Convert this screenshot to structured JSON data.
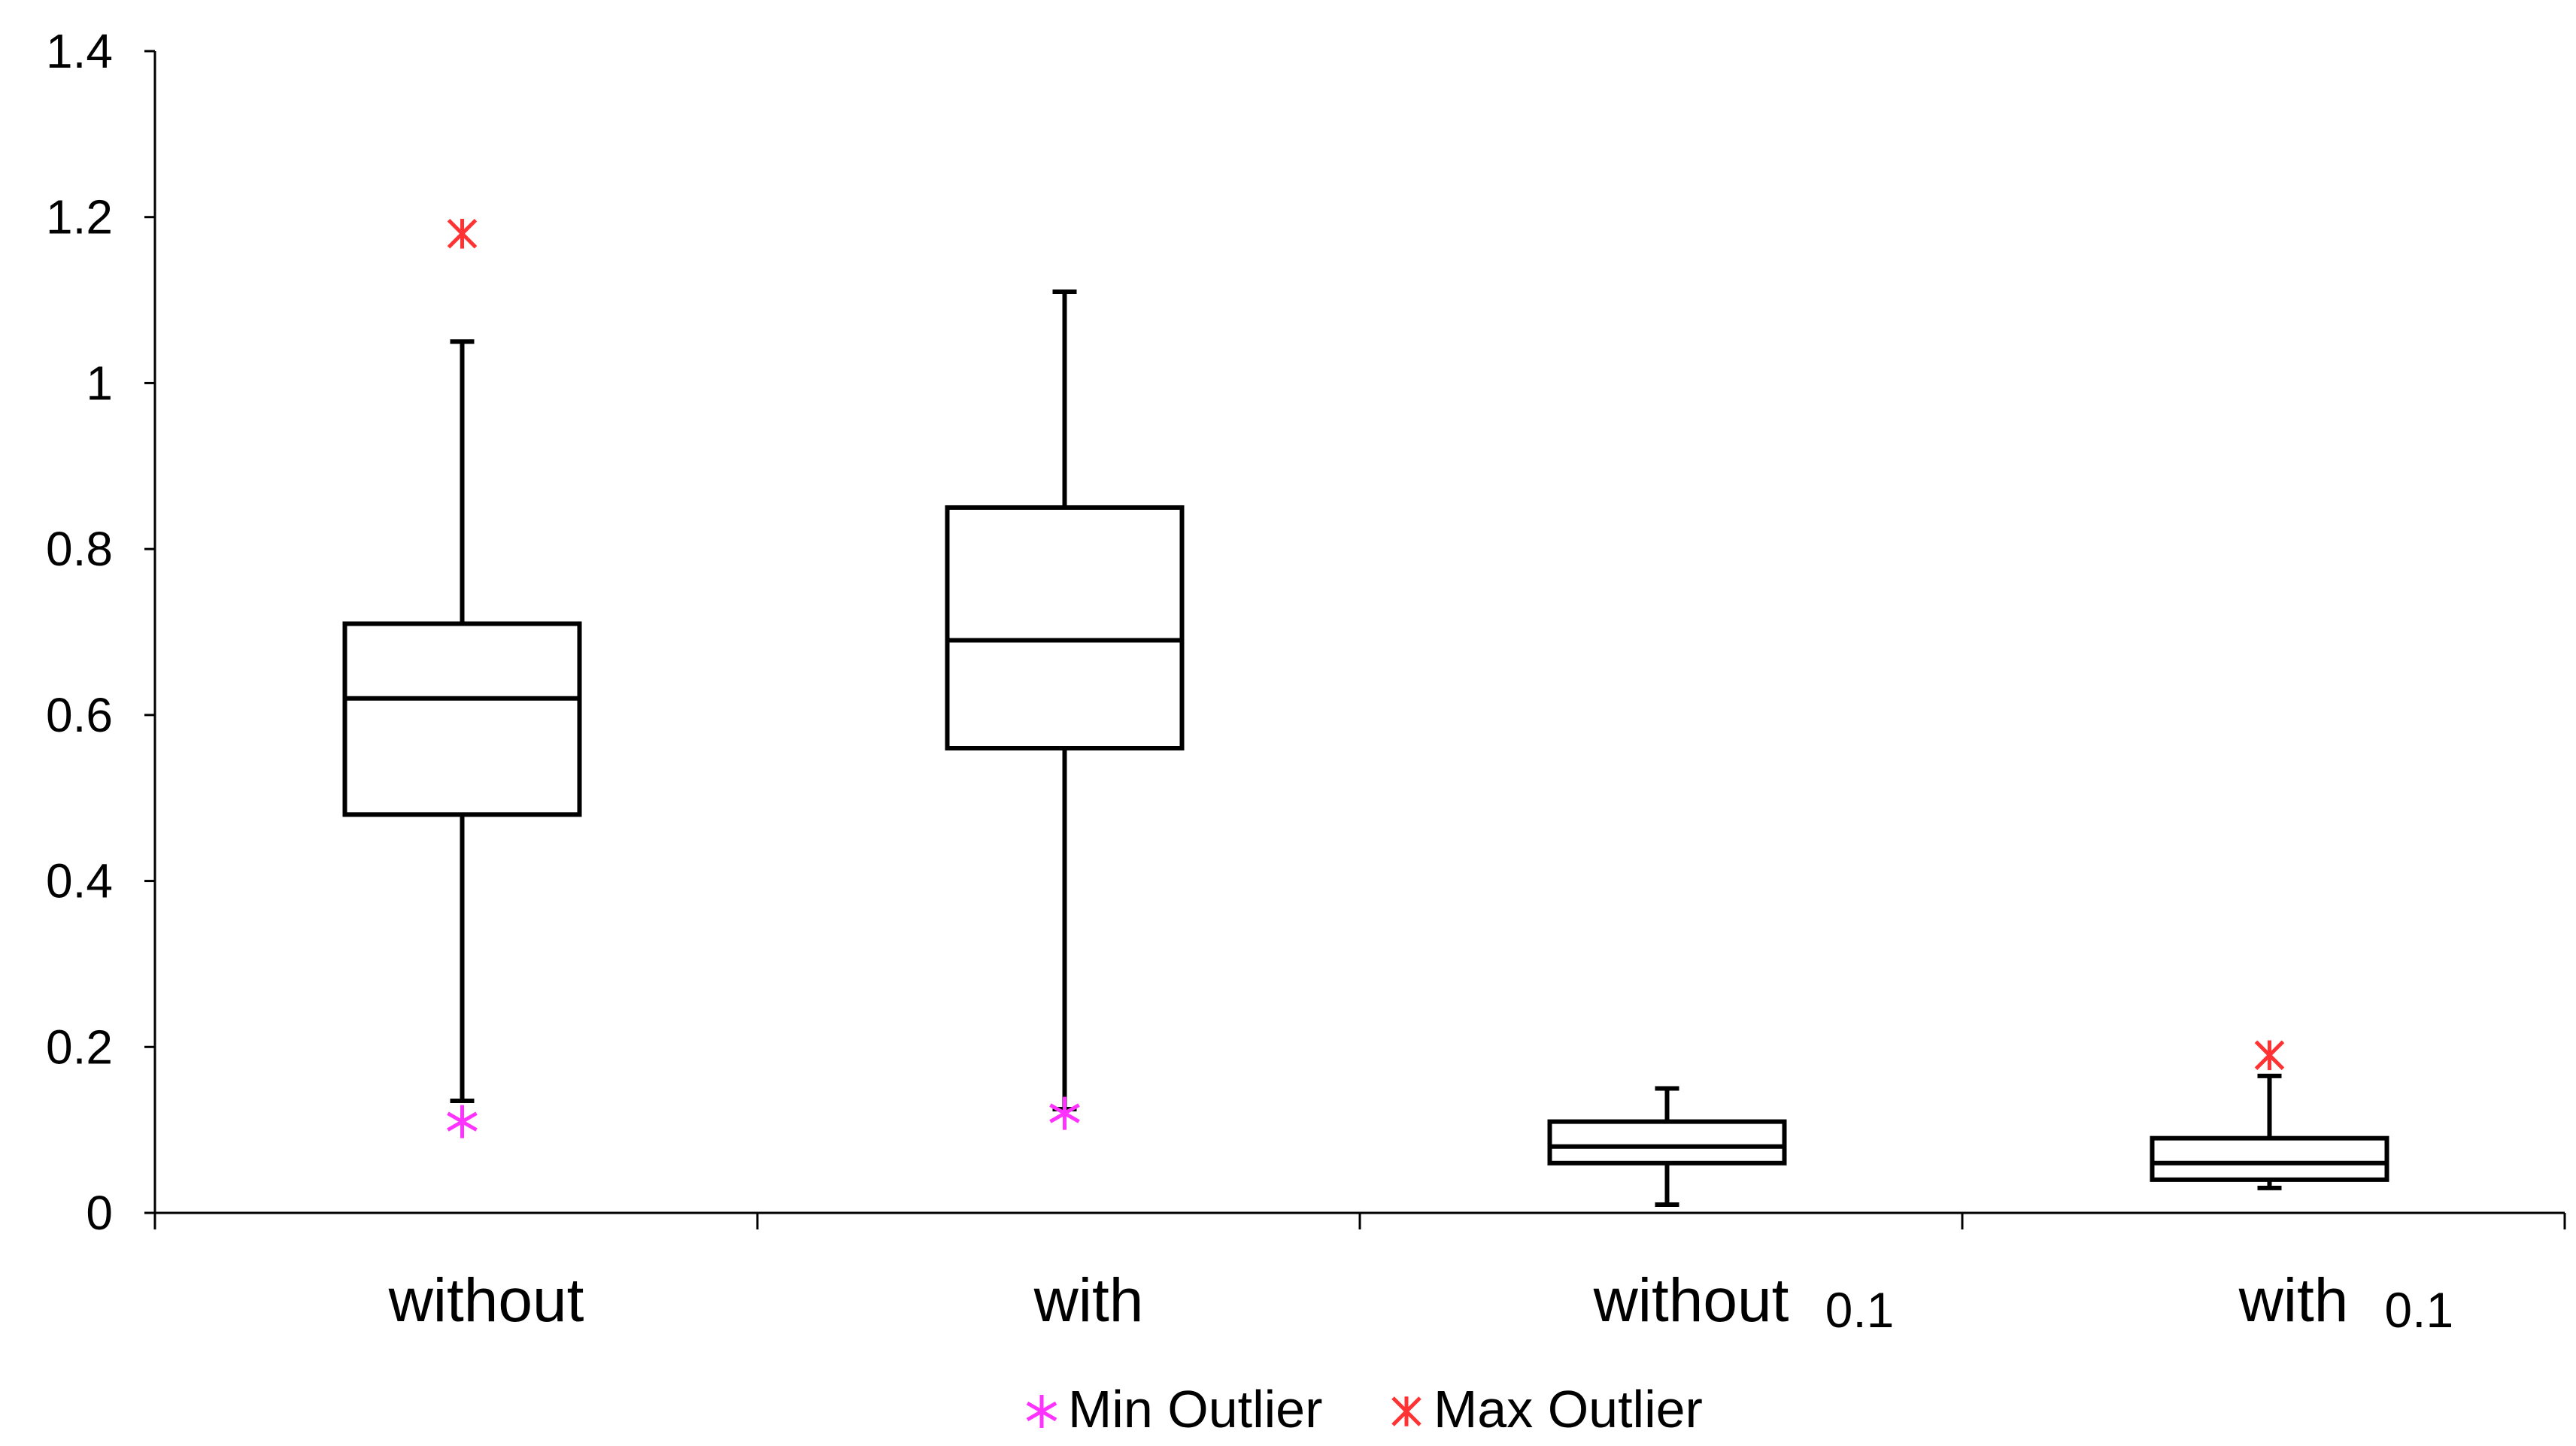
{
  "chart_data": {
    "type": "box",
    "categories": [
      {
        "label": "without",
        "suffix": ""
      },
      {
        "label": "with",
        "suffix": ""
      },
      {
        "label": "without",
        "suffix": "0.1"
      },
      {
        "label": "with",
        "suffix": "0.1"
      }
    ],
    "boxes": [
      {
        "whisker_low": 0.135,
        "q1": 0.48,
        "median": 0.62,
        "q3": 0.71,
        "whisker_high": 1.05,
        "min_outlier": 0.11,
        "max_outlier": 1.18
      },
      {
        "whisker_low": 0.125,
        "q1": 0.56,
        "median": 0.69,
        "q3": 0.85,
        "whisker_high": 1.11,
        "min_outlier": 0.12,
        "max_outlier": null
      },
      {
        "whisker_low": 0.01,
        "q1": 0.06,
        "median": 0.08,
        "q3": 0.11,
        "whisker_high": 0.15,
        "min_outlier": null,
        "max_outlier": null
      },
      {
        "whisker_low": 0.03,
        "q1": 0.04,
        "median": 0.06,
        "q3": 0.09,
        "whisker_high": 0.165,
        "min_outlier": null,
        "max_outlier": 0.19
      }
    ],
    "yticks": [
      "0",
      "0.2",
      "0.4",
      "0.6",
      "0.8",
      "1",
      "1.2",
      "1.4"
    ],
    "ylim": [
      0,
      1.4
    ],
    "grid": false,
    "legend_position": "bottom",
    "legend": [
      {
        "label": "Min Outlier",
        "color": "#ff33ff",
        "marker": "asterisk"
      },
      {
        "label": "Max Outlier",
        "color": "#ff3333",
        "marker": "x-star"
      }
    ]
  }
}
